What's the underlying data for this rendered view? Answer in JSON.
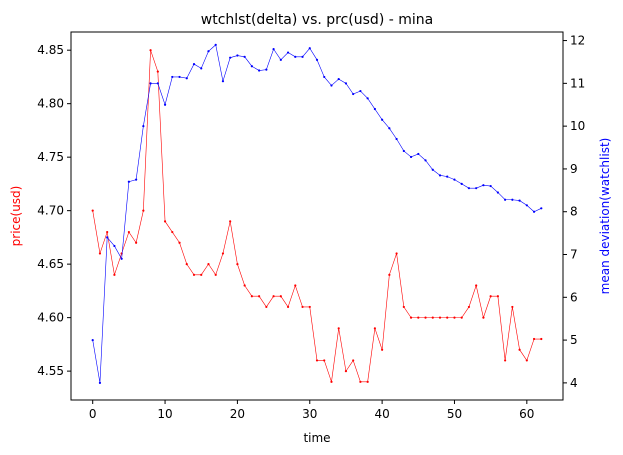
{
  "chart_data": {
    "type": "line",
    "title": "wtchlst(delta) vs. prc(usd) - mina",
    "xlabel": "time",
    "ylabel_left": "price(usd)",
    "ylabel_right": "mean deviation(watchlist)",
    "xlim": [
      -3,
      65
    ],
    "ylim_left": [
      4.523,
      4.867
    ],
    "ylim_right": [
      3.6,
      12.2
    ],
    "x_ticks": [
      0,
      10,
      20,
      30,
      40,
      50,
      60
    ],
    "y_ticks_left": [
      4.55,
      4.6,
      4.65,
      4.7,
      4.75,
      4.8,
      4.85
    ],
    "y_ticks_right": [
      4,
      5,
      6,
      7,
      8,
      9,
      10,
      11,
      12
    ],
    "grid": false,
    "colors": {
      "price": "#ff0000",
      "watchlist": "#0000ff"
    },
    "series": [
      {
        "axis": "left",
        "color": "#ff0000",
        "x": [
          0,
          1,
          2,
          3,
          4,
          5,
          6,
          7,
          8,
          9,
          10,
          11,
          12,
          13,
          14,
          15,
          16,
          17,
          18,
          19,
          20,
          21,
          22,
          23,
          24,
          25,
          26,
          27,
          28,
          29,
          30,
          31,
          32,
          33,
          34,
          35,
          36,
          37,
          38,
          39,
          40,
          41,
          42,
          43,
          44,
          45,
          46,
          47,
          48,
          49,
          50,
          51,
          52,
          53,
          54,
          55,
          56,
          57,
          58,
          59,
          60,
          61,
          62
        ],
        "values": [
          4.7,
          4.66,
          4.68,
          4.64,
          4.66,
          4.68,
          4.67,
          4.7,
          4.85,
          4.83,
          4.69,
          4.68,
          4.67,
          4.65,
          4.64,
          4.64,
          4.65,
          4.64,
          4.66,
          4.69,
          4.65,
          4.63,
          4.62,
          4.62,
          4.61,
          4.62,
          4.62,
          4.61,
          4.63,
          4.61,
          4.61,
          4.56,
          4.56,
          4.54,
          4.59,
          4.55,
          4.56,
          4.54,
          4.54,
          4.59,
          4.57,
          4.64,
          4.66,
          4.61,
          4.6,
          4.6,
          4.6,
          4.6,
          4.6,
          4.6,
          4.6,
          4.6,
          4.61,
          4.63,
          4.6,
          4.62,
          4.62,
          4.56,
          4.61,
          4.57,
          4.56,
          4.58,
          4.58
        ]
      },
      {
        "axis": "right",
        "color": "#0000ff",
        "x": [
          0,
          1,
          2,
          3,
          4,
          5,
          6,
          7,
          8,
          9,
          10,
          11,
          12,
          13,
          14,
          15,
          16,
          17,
          18,
          19,
          20,
          21,
          22,
          23,
          24,
          25,
          26,
          27,
          28,
          29,
          30,
          31,
          32,
          33,
          34,
          35,
          36,
          37,
          38,
          39,
          40,
          41,
          42,
          43,
          44,
          45,
          46,
          47,
          48,
          49,
          50,
          51,
          52,
          53,
          54,
          55,
          56,
          57,
          58,
          59,
          60,
          61,
          62
        ],
        "values": [
          5.0,
          4.0,
          7.4,
          7.2,
          6.9,
          8.7,
          8.75,
          10.0,
          11.0,
          11.0,
          10.5,
          11.15,
          11.15,
          11.12,
          11.45,
          11.35,
          11.75,
          11.9,
          11.05,
          11.6,
          11.65,
          11.62,
          11.4,
          11.3,
          11.32,
          11.8,
          11.55,
          11.72,
          11.62,
          11.62,
          11.82,
          11.55,
          11.15,
          10.95,
          11.1,
          11.0,
          10.75,
          10.82,
          10.65,
          10.4,
          10.15,
          9.95,
          9.7,
          9.42,
          9.28,
          9.35,
          9.2,
          8.98,
          8.85,
          8.82,
          8.75,
          8.65,
          8.55,
          8.55,
          8.62,
          8.6,
          8.45,
          8.28,
          8.28,
          8.26,
          8.15,
          8.0,
          8.08
        ]
      }
    ]
  }
}
